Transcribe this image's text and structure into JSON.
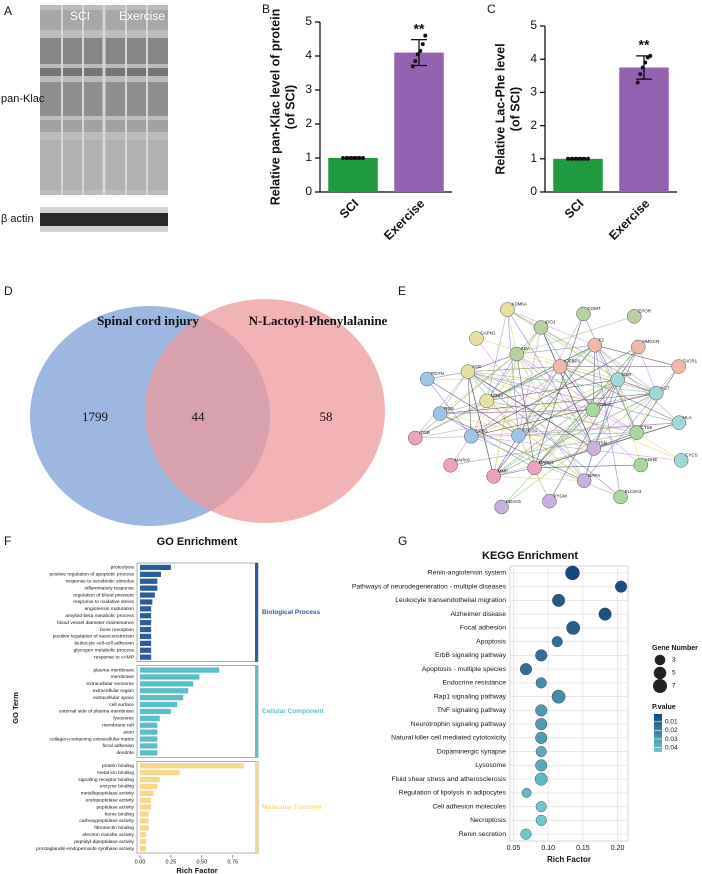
{
  "blot": {
    "panel": "A",
    "lanes": [
      "SCI",
      "Exercise"
    ],
    "rows": [
      "pan-Klac",
      "β actin"
    ]
  },
  "network": {
    "panel": "E",
    "nodes": [
      "ADRA1",
      "PTGS1",
      "IGFBP3",
      "TSN",
      "NOX4",
      "GSR",
      "MAPK2",
      "ADA",
      "CTSK",
      "CTSG",
      "F2",
      "NPPA",
      "ACE",
      "AGT",
      "MMP",
      "IDO1",
      "ADHE",
      "REN",
      "HMGCR",
      "PYGM",
      "CAPN1",
      "HLA",
      "MAPK8",
      "COMT",
      "SLC6A3",
      "PDYN",
      "TACR1",
      "HDAC5",
      "KDM6A",
      "CYCS",
      "ITGB",
      "EPOR"
    ]
  },
  "chart_data": [
    {
      "type": "bar",
      "panel": "B",
      "ylabel": [
        "Relative pan-Klac level of protein",
        "(of SCI)"
      ],
      "categories": [
        "SCI",
        "Exercise"
      ],
      "values": [
        1,
        4.1
      ],
      "errors": [
        0.03,
        0.38
      ],
      "colors": [
        "#1f9a3f",
        "#9462b0"
      ],
      "points": [
        [
          1,
          1,
          1,
          1,
          1,
          1
        ],
        [
          3.7,
          3.85,
          4.05,
          4.15,
          4.35,
          4.6
        ]
      ],
      "annotation": "**",
      "ylim": [
        0,
        5
      ],
      "yticks": [
        0,
        1,
        2,
        3,
        4,
        5
      ]
    },
    {
      "type": "bar",
      "panel": "C",
      "ylabel": [
        "Relative Lac-Phe level",
        "(of SCI)"
      ],
      "categories": [
        "SCI",
        "Exercise"
      ],
      "values": [
        1,
        3.75
      ],
      "errors": [
        0.03,
        0.35
      ],
      "colors": [
        "#1f9a3f",
        "#9462b0"
      ],
      "points": [
        [
          1,
          1,
          1,
          1,
          1,
          1
        ],
        [
          3.3,
          3.55,
          3.75,
          3.9,
          4.05,
          4.1
        ]
      ],
      "annotation": "**",
      "ylim": [
        0,
        5
      ],
      "yticks": [
        0,
        1,
        2,
        3,
        4,
        5
      ]
    },
    {
      "type": "venn",
      "panel": "D",
      "sets": [
        {
          "name": "Spinal cord injury",
          "color": "#7b9fd8"
        },
        {
          "name": "N-Lactoyl-Phenylalanine",
          "color": "#ee9a9c"
        }
      ],
      "values": [
        1799,
        44,
        58
      ]
    },
    {
      "type": "bar",
      "panel": "F",
      "horizontal": true,
      "title": "GO Enrichment",
      "xlabel": "Rich Factor",
      "ylabel": "GO Term",
      "xlim": [
        0,
        0.93
      ],
      "xticks": [
        {
          "value": 0,
          "label": "0.00"
        },
        0.25,
        {
          "value": 0.5,
          "label": "0.50"
        },
        0.75
      ],
      "groups": [
        {
          "name": "Biological Process",
          "color": "#2b5d9b",
          "categories": [
            "proteolysis",
            "positive regulation of apoptotic process",
            "response to xenobiotic stimulus",
            "inflammatory response",
            "regulation of blood pressure",
            "response to oxidative stress",
            "angiotensin maturation",
            "amyloid-beta metabolic process",
            "blood vessel diameter maintenance",
            "bone resorption",
            "positive regulation of vasoconstriction",
            "leukocyte cell-cell adhesion",
            "glycogen metabolic process",
            "response to cAMP"
          ],
          "values": [
            0.25,
            0.17,
            0.14,
            0.14,
            0.12,
            0.1,
            0.09,
            0.09,
            0.09,
            0.09,
            0.09,
            0.09,
            0.09,
            0.09
          ]
        },
        {
          "name": "Cellular Component",
          "color": "#5bbdc8",
          "categories": [
            "plasma membrane",
            "membrane",
            "extracellular exosome",
            "extracellular region",
            "extracellular space",
            "cell surface",
            "external side of plasma membrane",
            "lysosome",
            "membrane raft",
            "axon",
            "collagen-containing extracellular matrix",
            "focal adhesion",
            "dendrite"
          ],
          "values": [
            0.64,
            0.48,
            0.43,
            0.39,
            0.35,
            0.3,
            0.25,
            0.16,
            0.14,
            0.14,
            0.14,
            0.14,
            0.14
          ]
        },
        {
          "name": "Molecular Function",
          "color": "#f7d98c",
          "categories": [
            "protein binding",
            "metal ion binding",
            "signaling receptor binding",
            "enzyme binding",
            "metallopeptidase activity",
            "endopeptidase activity",
            "peptidase activity",
            "heme binding",
            "carboxypeptidase activity",
            "fibronectin binding",
            "electron transfer activity",
            "peptidyl-dipeptidase activity",
            "prostaglandin-endoperoxide synthase activity"
          ],
          "values": [
            0.84,
            0.32,
            0.16,
            0.14,
            0.11,
            0.09,
            0.09,
            0.07,
            0.07,
            0.07,
            0.05,
            0.05,
            0.05
          ]
        }
      ]
    },
    {
      "type": "scatter",
      "panel": "G",
      "title": "KEGG Enrichment",
      "xlabel": "Rich Factor",
      "categories": [
        "Renin-angiotensin system",
        "Pathways of neurodegeneration - multiple diseases",
        "Leukocyte transendothelial migration",
        "Alzheimer disease",
        "Focal adhesion",
        "Apoptosis",
        "ErbB signaling pathway",
        "Apoptosis - multiple species",
        "Endocrine resistance",
        "Rap1 signaling pathway",
        "TNF signaling pathway",
        "Neurotrophin signaling pathway",
        "Natural killer cell mediated cytotoxicity",
        "Dopaminergic synapse",
        "Lysosome",
        "Fluid shear stress and atherosclerosis",
        "Regulation of lipolysis in adipocytes",
        "Cell adhesion molecules",
        "Necroptosis",
        "Renin secretion"
      ],
      "x": [
        0.135,
        0.205,
        0.115,
        0.182,
        0.136,
        0.113,
        0.09,
        0.068,
        0.09,
        0.115,
        0.09,
        0.09,
        0.09,
        0.09,
        0.09,
        0.09,
        0.069,
        0.09,
        0.09,
        0.068
      ],
      "sizes": [
        7,
        4,
        5,
        5,
        6,
        3,
        4,
        4,
        3,
        6,
        4,
        4,
        4,
        3,
        4,
        5,
        2,
        3,
        3,
        3
      ],
      "pvalues": [
        0.001,
        0.004,
        0.008,
        0.005,
        0.01,
        0.015,
        0.015,
        0.015,
        0.025,
        0.025,
        0.03,
        0.03,
        0.03,
        0.035,
        0.035,
        0.04,
        0.04,
        0.045,
        0.045,
        0.045
      ],
      "xlim": [
        0.045,
        0.215
      ],
      "xticks": [
        0.05,
        {
          "value": 0.1,
          "label": "0.10"
        },
        0.15,
        {
          "value": 0.2,
          "label": "0.20"
        }
      ],
      "size_legend_title": "Gene Number",
      "size_legend": [
        3,
        5,
        7
      ],
      "color_legend_title": "P.value",
      "colorlim": [
        0.001,
        0.045
      ],
      "colorticks": [
        0.01,
        0.02,
        0.03,
        0.04
      ],
      "colors": [
        "#14457e",
        "#6dc7cc"
      ],
      "grid": true
    }
  ]
}
